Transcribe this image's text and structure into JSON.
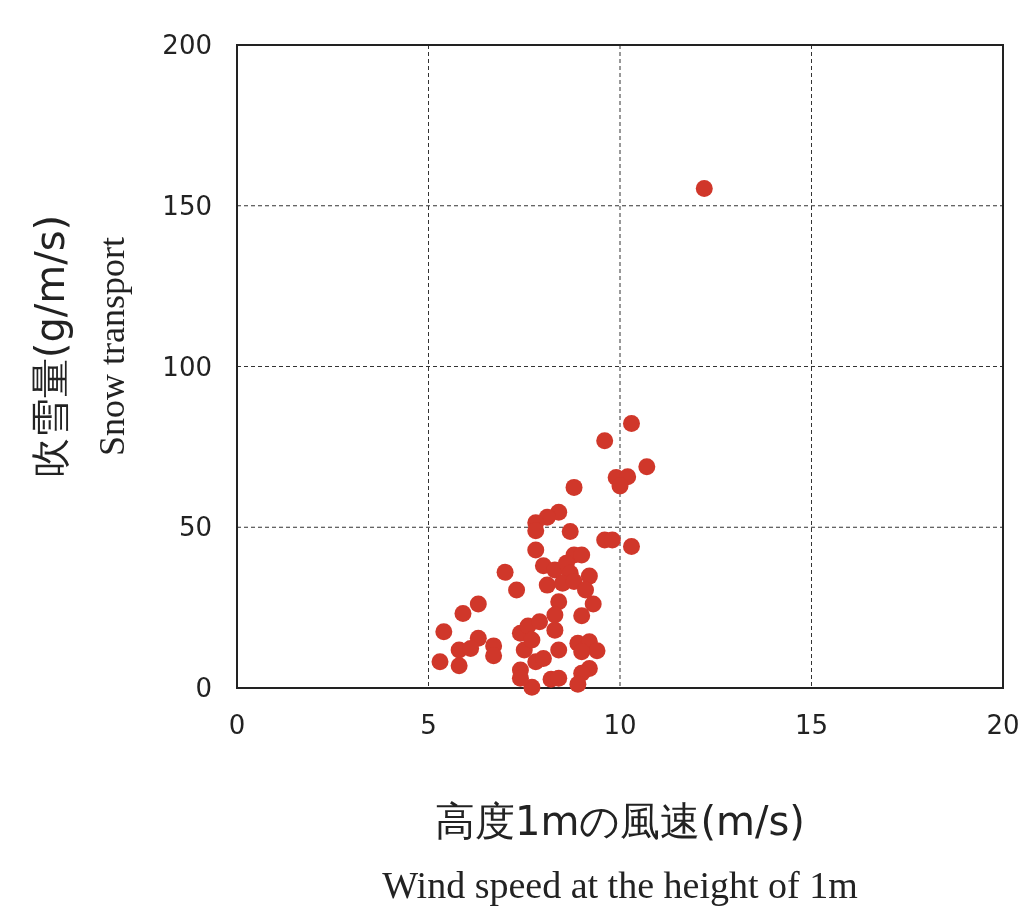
{
  "chart_data": {
    "type": "scatter",
    "xlabel": "高度1mの風速(m/s)\nWind speed at the height of 1m",
    "ylabel": "吹雪量(g/m/s)\nSnow transport",
    "xlim": [
      0,
      20
    ],
    "ylim": [
      0,
      200
    ],
    "xticks": [
      0,
      5,
      10,
      15,
      20
    ],
    "yticks": [
      0,
      50,
      100,
      150,
      200
    ],
    "grid": true,
    "marker": "circle",
    "color": "#d0372a",
    "x": [
      10.3,
      9.6,
      10.7,
      9.9,
      10.2,
      10.0,
      8.8,
      8.4,
      8.1,
      7.8,
      7.8,
      8.7,
      9.6,
      9.8,
      10.3,
      7.8,
      8.8,
      9.0,
      8.0,
      8.3,
      8.6,
      9.2,
      8.7,
      7.0,
      8.1,
      8.5,
      8.8,
      9.1,
      7.3,
      8.4,
      9.3,
      8.3,
      9.0,
      6.3,
      5.9,
      5.4,
      7.4,
      7.6,
      7.9,
      8.3,
      6.3,
      6.7,
      5.8,
      6.1,
      6.7,
      5.3,
      5.8,
      7.5,
      7.8,
      8.0,
      8.4,
      8.9,
      9.2,
      9.4,
      9.0,
      7.4,
      9.2,
      9.0,
      8.2,
      8.4,
      7.7,
      8.9,
      7.4,
      7.7,
      12.2
    ],
    "values": [
      82.3,
      76.9,
      68.8,
      65.5,
      65.7,
      62.8,
      62.4,
      54.7,
      53.1,
      51.4,
      48.9,
      48.7,
      46.0,
      46.0,
      44.0,
      42.9,
      41.4,
      41.4,
      38.0,
      36.7,
      38.8,
      34.8,
      35.7,
      36.0,
      32.0,
      32.6,
      33.1,
      30.5,
      30.5,
      26.8,
      26.1,
      22.7,
      22.5,
      26.1,
      23.2,
      17.5,
      17.0,
      19.3,
      20.6,
      18.0,
      15.5,
      13.1,
      11.8,
      12.3,
      10.0,
      8.2,
      6.9,
      11.8,
      8.2,
      9.2,
      11.8,
      13.9,
      14.4,
      11.6,
      11.3,
      5.6,
      6.1,
      4.6,
      2.7,
      3.0,
      0.2,
      1.2,
      3.0,
      14.9,
      155.4
    ]
  }
}
